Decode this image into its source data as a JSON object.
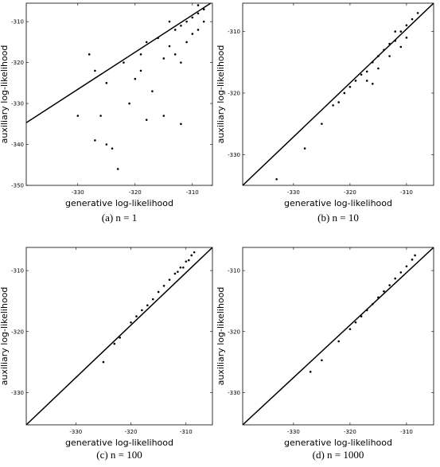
{
  "chart_data": [
    {
      "type": "scatter",
      "xlabel": "generative log-likelihood",
      "ylabel": "auxiliary log-likelihood",
      "caption": "(a) n = 1",
      "xlim": [
        -339,
        -306.5
      ],
      "ylim": [
        -350,
        -305.5
      ],
      "xticks": [
        -330,
        -320,
        -310
      ],
      "yticks": [
        -350,
        -340,
        -330,
        -320,
        -310
      ],
      "color": "#000000",
      "x": [
        -308,
        -309,
        -310,
        -311,
        -312,
        -313,
        -310,
        -311,
        -314,
        -316,
        -318,
        -315,
        -312,
        -319,
        -322,
        -320,
        -317,
        -325,
        -327,
        -328,
        -321,
        -315,
        -318,
        -326,
        -330,
        -325,
        -327,
        -324,
        -323,
        -312,
        -309,
        -308,
        -309,
        -314,
        -313,
        -319
      ],
      "y": [
        -307,
        -308,
        -309,
        -310,
        -311,
        -312,
        -313,
        -315,
        -316,
        -314,
        -315,
        -319,
        -320,
        -318,
        -320,
        -324,
        -327,
        -325,
        -322,
        -318,
        -330,
        -333,
        -334,
        -333,
        -333,
        -340,
        -339,
        -341,
        -346,
        -335,
        -312,
        -310,
        -306,
        -310,
        -318,
        -322
      ],
      "line": {
        "x": [
          -339,
          -306.8
        ],
        "y": [
          -334.7,
          -305.5
        ]
      }
    },
    {
      "type": "scatter",
      "xlabel": "generative log-likelihood",
      "ylabel": "auxiliary log-likelihood",
      "caption": "(b) n = 10",
      "xlim": [
        -339,
        -305.2
      ],
      "ylim": [
        -335,
        -305.4
      ],
      "xticks": [
        -330,
        -320,
        -310
      ],
      "yticks": [
        -330,
        -320,
        -310
      ],
      "color": "#000000",
      "x": [
        -308,
        -309,
        -310,
        -311,
        -312,
        -313,
        -314,
        -315,
        -316,
        -317,
        -318,
        -319,
        -320,
        -321,
        -322,
        -323,
        -325,
        -328,
        -333,
        -310,
        -311,
        -312,
        -313,
        -315,
        -317,
        -316
      ],
      "y": [
        -307,
        -308,
        -309,
        -310,
        -311.5,
        -312,
        -313,
        -314,
        -315,
        -316.5,
        -317,
        -318,
        -319,
        -320,
        -321.5,
        -322,
        -325,
        -329,
        -334,
        -311,
        -312.5,
        -310,
        -314,
        -316,
        -318,
        -318.5
      ],
      "line": {
        "x": [
          -339,
          -305.2
        ],
        "y": [
          -335,
          -305.4
        ]
      }
    },
    {
      "type": "scatter",
      "xlabel": "generative log-likelihood",
      "ylabel": "auxiliary log-likelihood",
      "caption": "(c) n = 100",
      "xlim": [
        -339,
        -305.2
      ],
      "ylim": [
        -335.3,
        -306.2
      ],
      "xticks": [
        -330,
        -320,
        -310
      ],
      "yticks": [
        -330,
        -320,
        -310
      ],
      "color": "#000000",
      "x": [
        -308.5,
        -309,
        -310,
        -311,
        -312,
        -313,
        -314,
        -315,
        -316,
        -317,
        -318,
        -319,
        -320,
        -322,
        -323,
        -325,
        -309.5,
        -310.5,
        -311.5
      ],
      "y": [
        -307,
        -307.5,
        -308.5,
        -309.5,
        -310.5,
        -311.5,
        -312.5,
        -313.5,
        -314.7,
        -315.7,
        -316.5,
        -317.5,
        -318.5,
        -321,
        -322,
        -325,
        -308.3,
        -309.5,
        -310.2
      ],
      "line": {
        "x": [
          -339,
          -305.2
        ],
        "y": [
          -335.3,
          -306.2
        ]
      }
    },
    {
      "type": "scatter",
      "xlabel": "generative log-likelihood",
      "ylabel": "auxiliary log-likelihood",
      "caption": "(d) n = 1000",
      "xlim": [
        -339,
        -305.2
      ],
      "ylim": [
        -335.3,
        -306.2
      ],
      "xticks": [
        -330,
        -320,
        -310
      ],
      "yticks": [
        -330,
        -320,
        -310
      ],
      "color": "#000000",
      "x": [
        -308.5,
        -309,
        -310,
        -311,
        -312,
        -313,
        -314,
        -315,
        -316,
        -317,
        -318,
        -319,
        -320,
        -322,
        -325,
        -327
      ],
      "y": [
        -307.5,
        -308.2,
        -309.3,
        -310.3,
        -311.3,
        -312.4,
        -313.4,
        -314.4,
        -315.5,
        -316.5,
        -317.5,
        -318.5,
        -319.6,
        -321.6,
        -324.7,
        -326.6
      ],
      "line": {
        "x": [
          -339,
          -305.2
        ],
        "y": [
          -335.3,
          -306.2
        ]
      }
    }
  ]
}
